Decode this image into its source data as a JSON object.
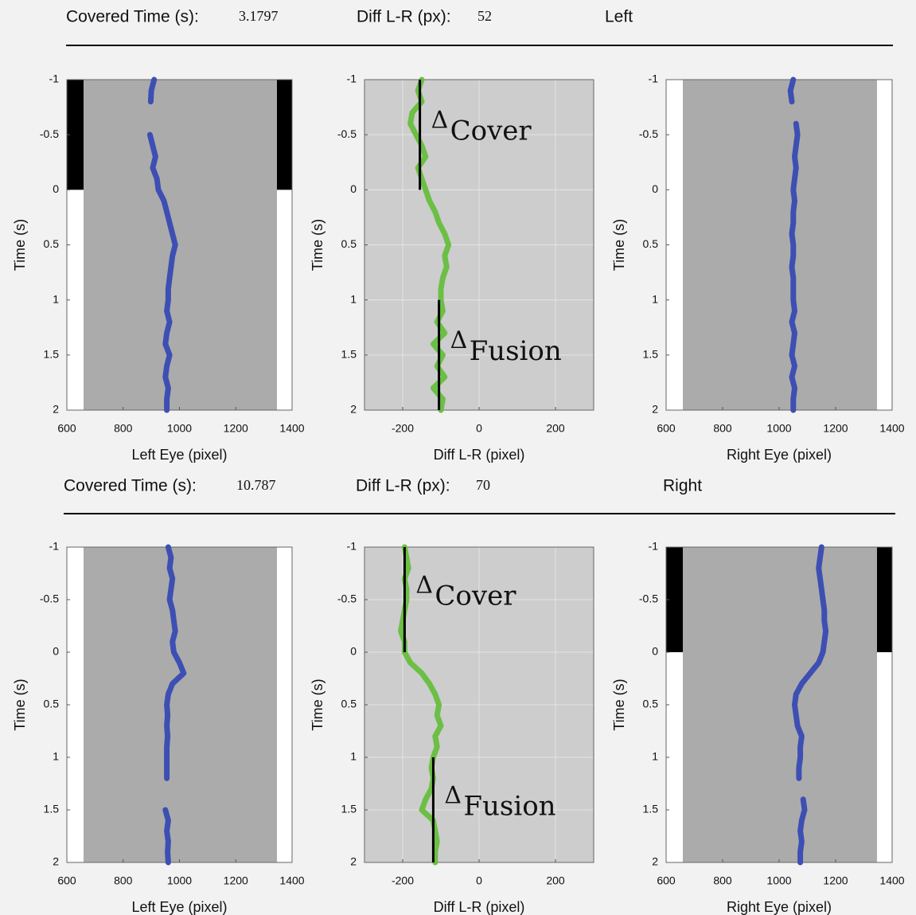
{
  "headers": [
    {
      "covered_label": "Covered Time (s):",
      "covered_value": "3.1797",
      "diff_label": "Diff L-R (px):",
      "diff_value": "52",
      "eye": "Left"
    },
    {
      "covered_label": "Covered Time (s):",
      "covered_value": "10.787",
      "diff_label": "Diff L-R (px):",
      "diff_value": "70",
      "eye": "Right"
    }
  ],
  "chart_data": [
    {
      "type": "line",
      "xlabel": "Left Eye (pixel)",
      "ylabel": "Time (s)",
      "xlim": [
        600,
        1400
      ],
      "xticks": [
        600,
        800,
        1000,
        1200,
        1400
      ],
      "ylim": [
        -1,
        2
      ],
      "yreverse": true,
      "yticks": [
        -1,
        -0.5,
        0,
        0.5,
        1,
        1.5,
        2
      ],
      "background": "#ababab",
      "grid": false,
      "screen": true,
      "occluded": [
        -1,
        0
      ],
      "y": [
        -1,
        -0.9,
        -0.8,
        -0.7,
        -0.6,
        -0.5,
        -0.4,
        -0.3,
        -0.2,
        -0.1,
        0,
        0.1,
        0.2,
        0.3,
        0.4,
        0.5,
        0.6,
        0.7,
        0.8,
        0.9,
        1,
        1.1,
        1.2,
        1.3,
        1.4,
        1.5,
        1.6,
        1.7,
        1.8,
        1.9,
        2
      ],
      "series": [
        {
          "color": "#3d4fb3",
          "values": [
            910,
            900,
            898,
            null,
            null,
            895,
            905,
            915,
            905,
            920,
            925,
            945,
            955,
            965,
            975,
            985,
            975,
            970,
            965,
            960,
            960,
            955,
            965,
            955,
            950,
            965,
            955,
            950,
            960,
            955,
            955
          ]
        }
      ]
    },
    {
      "type": "line",
      "xlabel": "Diff L-R (pixel)",
      "ylabel": "Time (s)",
      "xlim": [
        -300,
        300
      ],
      "xticks": [
        -200,
        0,
        200
      ],
      "ylim": [
        -1,
        2
      ],
      "yreverse": true,
      "yticks": [
        -1,
        -0.5,
        0,
        0.5,
        1,
        1.5,
        2
      ],
      "background": "#cdcdcd",
      "grid": true,
      "screen": false,
      "y": [
        -1,
        -0.9,
        -0.8,
        -0.7,
        -0.6,
        -0.5,
        -0.4,
        -0.3,
        -0.2,
        -0.1,
        0,
        0.1,
        0.2,
        0.3,
        0.4,
        0.5,
        0.6,
        0.7,
        0.8,
        0.9,
        1,
        1.1,
        1.2,
        1.3,
        1.4,
        1.5,
        1.6,
        1.7,
        1.8,
        1.9,
        2
      ],
      "series": [
        {
          "color": "#6cbf45",
          "values": [
            -150,
            -160,
            -150,
            -175,
            -180,
            -165,
            -150,
            -140,
            -160,
            -150,
            -140,
            -130,
            -115,
            -105,
            -90,
            -80,
            -90,
            -85,
            -95,
            -100,
            -100,
            -95,
            -110,
            -90,
            -120,
            -95,
            -110,
            -90,
            -120,
            -95,
            -100
          ]
        }
      ],
      "annotations": [
        {
          "symbol": "Δ",
          "text": "Cover",
          "x": -155,
          "y": [
            -1,
            0
          ]
        },
        {
          "symbol": "Δ",
          "text": "Fusion",
          "x": -105,
          "y": [
            1,
            2
          ]
        }
      ]
    },
    {
      "type": "line",
      "xlabel": "Right Eye (pixel)",
      "ylabel": "Time (s)",
      "xlim": [
        600,
        1400
      ],
      "xticks": [
        600,
        800,
        1000,
        1200,
        1400
      ],
      "ylim": [
        -1,
        2
      ],
      "yreverse": true,
      "yticks": [
        -1,
        -0.5,
        0,
        0.5,
        1,
        1.5,
        2
      ],
      "background": "#ababab",
      "grid": false,
      "screen": true,
      "y": [
        -1,
        -0.9,
        -0.8,
        -0.7,
        -0.6,
        -0.5,
        -0.4,
        -0.3,
        -0.2,
        -0.1,
        0,
        0.1,
        0.2,
        0.3,
        0.4,
        0.5,
        0.6,
        0.7,
        0.8,
        0.9,
        1,
        1.1,
        1.2,
        1.3,
        1.4,
        1.5,
        1.6,
        1.7,
        1.8,
        1.9,
        2
      ],
      "series": [
        {
          "color": "#3d4fb3",
          "values": [
            1050,
            1040,
            1045,
            null,
            1060,
            1065,
            1060,
            1055,
            1060,
            1055,
            1050,
            1055,
            1050,
            1050,
            1045,
            1050,
            1050,
            1045,
            1050,
            1050,
            1050,
            1055,
            1045,
            1055,
            1050,
            1045,
            1055,
            1045,
            1055,
            1050,
            1050
          ]
        }
      ]
    },
    {
      "type": "line",
      "xlabel": "Left Eye (pixel)",
      "ylabel": "Time (s)",
      "xlim": [
        600,
        1400
      ],
      "xticks": [
        600,
        800,
        1000,
        1200,
        1400
      ],
      "ylim": [
        -1,
        2
      ],
      "yreverse": true,
      "yticks": [
        -1,
        -0.5,
        0,
        0.5,
        1,
        1.5,
        2
      ],
      "background": "#ababab",
      "grid": false,
      "screen": true,
      "y": [
        -1,
        -0.9,
        -0.8,
        -0.7,
        -0.6,
        -0.5,
        -0.4,
        -0.3,
        -0.2,
        -0.1,
        0,
        0.1,
        0.2,
        0.3,
        0.4,
        0.5,
        0.6,
        0.7,
        0.8,
        0.9,
        1,
        1.1,
        1.2,
        1.3,
        1.4,
        1.5,
        1.6,
        1.7,
        1.8,
        1.9,
        2
      ],
      "series": [
        {
          "color": "#3d4fb3",
          "values": [
            960,
            970,
            965,
            975,
            970,
            965,
            975,
            980,
            985,
            975,
            980,
            1000,
            1015,
            975,
            960,
            955,
            958,
            955,
            958,
            955,
            955,
            955,
            955,
            null,
            null,
            950,
            960,
            955,
            960,
            958,
            960
          ]
        }
      ]
    },
    {
      "type": "line",
      "xlabel": "Diff L-R (pixel)",
      "ylabel": "Time (s)",
      "xlim": [
        -300,
        300
      ],
      "xticks": [
        -200,
        0,
        200
      ],
      "ylim": [
        -1,
        2
      ],
      "yreverse": true,
      "yticks": [
        -1,
        -0.5,
        0,
        0.5,
        1,
        1.5,
        2
      ],
      "background": "#cdcdcd",
      "grid": true,
      "screen": false,
      "y": [
        -1,
        -0.9,
        -0.8,
        -0.7,
        -0.6,
        -0.5,
        -0.4,
        -0.3,
        -0.2,
        -0.1,
        0,
        0.1,
        0.2,
        0.3,
        0.4,
        0.5,
        0.6,
        0.7,
        0.8,
        0.9,
        1,
        1.1,
        1.2,
        1.3,
        1.4,
        1.5,
        1.6,
        1.7,
        1.8,
        1.9,
        2
      ],
      "series": [
        {
          "color": "#6cbf45",
          "values": [
            -195,
            -190,
            -185,
            -195,
            -190,
            -190,
            -195,
            -200,
            -205,
            -195,
            -195,
            -180,
            -150,
            -130,
            -115,
            -105,
            -110,
            -100,
            -115,
            -110,
            -120,
            -125,
            -120,
            -125,
            -140,
            -150,
            -120,
            -115,
            -110,
            -115,
            -115
          ]
        }
      ],
      "annotations": [
        {
          "symbol": "Δ",
          "text": "Cover",
          "x": -195,
          "y": [
            -1,
            0
          ]
        },
        {
          "symbol": "Δ",
          "text": "Fusion",
          "x": -120,
          "y": [
            1,
            2
          ]
        }
      ]
    },
    {
      "type": "line",
      "xlabel": "Right Eye (pixel)",
      "ylabel": "Time (s)",
      "xlim": [
        600,
        1400
      ],
      "xticks": [
        600,
        800,
        1000,
        1200,
        1400
      ],
      "ylim": [
        -1,
        2
      ],
      "yreverse": true,
      "yticks": [
        -1,
        -0.5,
        0,
        0.5,
        1,
        1.5,
        2
      ],
      "background": "#ababab",
      "grid": false,
      "screen": true,
      "occluded": [
        -1,
        0
      ],
      "y": [
        -1,
        -0.9,
        -0.8,
        -0.7,
        -0.6,
        -0.5,
        -0.4,
        -0.3,
        -0.2,
        -0.1,
        0,
        0.1,
        0.2,
        0.3,
        0.4,
        0.5,
        0.6,
        0.7,
        0.8,
        0.9,
        1,
        1.1,
        1.2,
        1.3,
        1.4,
        1.5,
        1.6,
        1.7,
        1.8,
        1.9,
        2
      ],
      "series": [
        {
          "color": "#3d4fb3",
          "values": [
            1150,
            1145,
            1140,
            1145,
            1150,
            1155,
            1160,
            1160,
            1165,
            1160,
            1155,
            1140,
            1110,
            1080,
            1060,
            1055,
            1060,
            1065,
            1080,
            1075,
            1075,
            1070,
            1070,
            null,
            1085,
            1090,
            1080,
            1075,
            1080,
            1075,
            1075
          ]
        }
      ]
    }
  ]
}
